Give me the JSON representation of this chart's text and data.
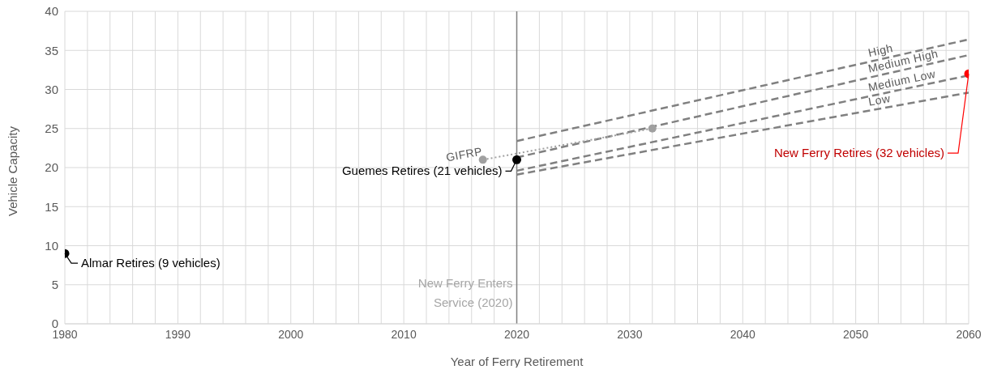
{
  "chart_data": {
    "type": "line",
    "xlabel": "Year of Ferry Retirement",
    "ylabel": "Vehicle Capacity",
    "xlim": [
      1980,
      2060
    ],
    "ylim": [
      0,
      40
    ],
    "xticks": [
      1980,
      {
        "value": 1982,
        "label": null
      },
      {
        "value": 1984,
        "label": null
      },
      {
        "value": 1986,
        "label": null
      },
      {
        "value": 1988,
        "label": null
      },
      1990,
      {
        "value": 1992,
        "label": null
      },
      {
        "value": 1994,
        "label": null
      },
      {
        "value": 1996,
        "label": null
      },
      {
        "value": 1998,
        "label": null
      },
      2000,
      {
        "value": 2002,
        "label": null
      },
      {
        "value": 2004,
        "label": null
      },
      {
        "value": 2006,
        "label": null
      },
      {
        "value": 2008,
        "label": null
      },
      2010,
      {
        "value": 2012,
        "label": null
      },
      {
        "value": 2014,
        "label": null
      },
      {
        "value": 2016,
        "label": null
      },
      {
        "value": 2018,
        "label": null
      },
      2020,
      {
        "value": 2022,
        "label": null
      },
      {
        "value": 2024,
        "label": null
      },
      {
        "value": 2026,
        "label": null
      },
      {
        "value": 2028,
        "label": null
      },
      2030,
      {
        "value": 2032,
        "label": null
      },
      {
        "value": 2034,
        "label": null
      },
      {
        "value": 2036,
        "label": null
      },
      {
        "value": 2038,
        "label": null
      },
      2040,
      {
        "value": 2042,
        "label": null
      },
      {
        "value": 2044,
        "label": null
      },
      {
        "value": 2046,
        "label": null
      },
      {
        "value": 2048,
        "label": null
      },
      2050,
      {
        "value": 2052,
        "label": null
      },
      {
        "value": 2054,
        "label": null
      },
      {
        "value": 2056,
        "label": null
      },
      {
        "value": 2058,
        "label": null
      },
      2060
    ],
    "yticks": [
      0,
      5,
      10,
      15,
      20,
      25,
      30,
      35,
      40
    ],
    "grid": true,
    "legend": false,
    "series": [
      {
        "name": "High",
        "color": "#808080",
        "x": [
          2020,
          2060
        ],
        "values": [
          23.4,
          36.4
        ],
        "line_style": "dashed",
        "marker": "none"
      },
      {
        "name": "Medium High",
        "color": "#808080",
        "x": [
          2020,
          2060
        ],
        "values": [
          21.3,
          34.4
        ],
        "line_style": "dashed",
        "marker": "none"
      },
      {
        "name": "Medium Low",
        "color": "#808080",
        "x": [
          2020,
          2060
        ],
        "values": [
          19.6,
          31.8
        ],
        "line_style": "dashed",
        "marker": "none"
      },
      {
        "name": "Low",
        "color": "#808080",
        "x": [
          2020,
          2060
        ],
        "values": [
          19.1,
          29.6
        ],
        "line_style": "dashed",
        "marker": "none"
      },
      {
        "name": "GIFRP",
        "color": "#a0a0a0",
        "x": [
          2017,
          2032
        ],
        "values": [
          21,
          25
        ],
        "line_style": "dotted",
        "marker": "circle"
      },
      {
        "type": "scatter",
        "color": "#000000",
        "colors": [
          "#000000",
          "#000000",
          "#ff0000"
        ],
        "x": [
          1980,
          2020,
          2060
        ],
        "values": [
          9,
          21,
          32
        ],
        "marker": "circle"
      }
    ],
    "ref_lines": [
      {
        "axis": "x",
        "value": 2020,
        "label": "New Ferry Enters Service (2020)",
        "color": "#808080"
      }
    ],
    "annotations": [
      {
        "text": "Almar Retires (9 vehicles)",
        "x": 1980,
        "y": 9
      },
      {
        "text": "Guemes Retires (21 vehicles)",
        "x": 2020,
        "y": 21
      },
      {
        "text": "New Ferry Retires (32 vehicles)",
        "x": 2060,
        "y": 32
      }
    ]
  }
}
